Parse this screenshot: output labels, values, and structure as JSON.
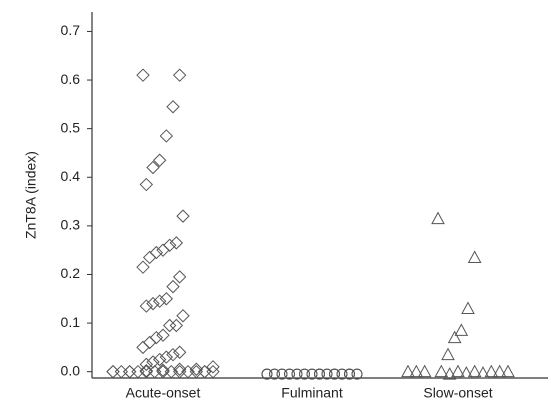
{
  "chart_data": {
    "type": "strip",
    "y_label": "ZnT8A (index)",
    "categories": [
      "Acute-onset",
      "Fulminant",
      "Slow-onset"
    ],
    "ylim": [
      -0.013,
      0.74
    ],
    "yticks": [
      {
        "value": 0,
        "label": "0.0"
      },
      {
        "value": 0.1,
        "label": "0.1"
      },
      {
        "value": 0.2,
        "label": "0.2"
      },
      {
        "value": 0.3,
        "label": "0.3"
      },
      {
        "value": 0.4,
        "label": "0.4"
      },
      {
        "value": 0.5,
        "label": "0.5"
      },
      {
        "value": 0.6,
        "label": "0.6"
      },
      {
        "value": 0.7,
        "label": "0.7"
      }
    ],
    "color": "#555555",
    "series": [
      {
        "marker": "diamond",
        "values": [
          0.61,
          0.61,
          0.545,
          0.485,
          0.435,
          0.42,
          0.385,
          0.32,
          0.265,
          0.26,
          0.25,
          0.245,
          0.235,
          0.215,
          0.195,
          0.175,
          0.15,
          0.145,
          0.14,
          0.135,
          0.115,
          0.095,
          0.095,
          0.075,
          0.07,
          0.06,
          0.05,
          0.04,
          0.035,
          0.03,
          0.025,
          0.02,
          0.015,
          0.01,
          0.005,
          0.005,
          0.003,
          0.002,
          0,
          0,
          0,
          0,
          0,
          0,
          0,
          0,
          0,
          0,
          0,
          0,
          0,
          0,
          0,
          0
        ]
      },
      {
        "marker": "circle",
        "values": [
          -0.005,
          -0.005,
          -0.005,
          -0.005,
          -0.005,
          -0.005,
          -0.005,
          -0.005,
          -0.005,
          -0.005,
          -0.005,
          -0.005,
          -0.005,
          -0.005,
          -0.005,
          -0.005,
          -0.005,
          -0.005,
          -0.005,
          -0.005,
          -0.005,
          -0.005,
          -0.005,
          -0.005,
          -0.005,
          -0.005,
          -0.005,
          -0.005,
          -0.005,
          -0.005
        ]
      },
      {
        "marker": "triangle",
        "values": [
          0.315,
          0.235,
          0.13,
          0.085,
          0.07,
          0.035,
          0,
          0,
          0,
          0,
          0,
          0,
          0,
          0,
          0,
          -0.003,
          -0.003,
          -0.005
        ]
      }
    ]
  }
}
